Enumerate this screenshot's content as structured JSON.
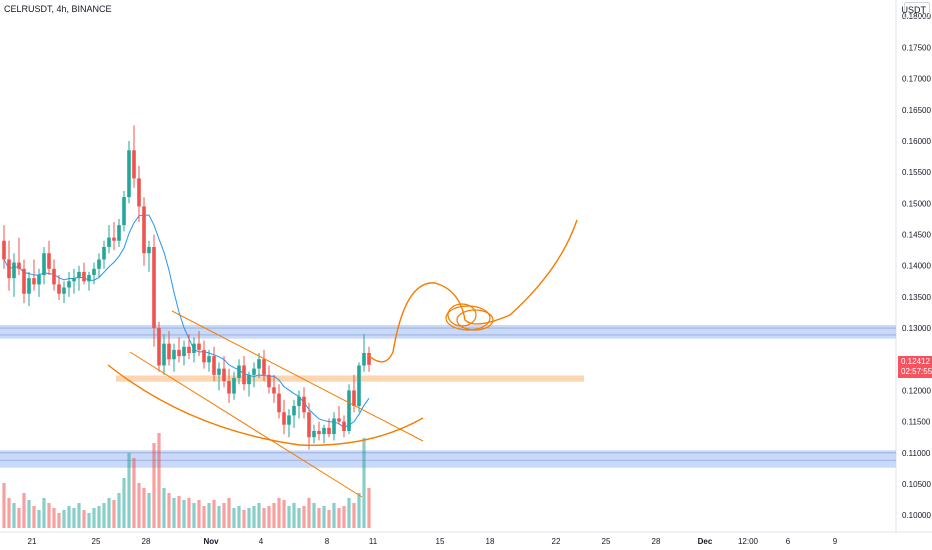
{
  "header": {
    "symbol_title": "CELRUSDT, 4h, BINANCE",
    "currency": "USDT"
  },
  "price_badge": {
    "price": "0.12412",
    "countdown": "02:57:55",
    "color": "#f7525f"
  },
  "colors": {
    "up": "#26a69a",
    "down": "#ef5350",
    "ma": "#2196f3",
    "drawing": "#f57c00",
    "zone_blue": "#b7cdf6",
    "zone_orange": "#fbcfa3",
    "background": "#ffffff"
  },
  "chart_data": {
    "type": "candlestick",
    "ylim": [
      0.0973,
      0.1826
    ],
    "y_ticks": [
      "0.18000",
      "0.17500",
      "0.17000",
      "0.16500",
      "0.16000",
      "0.15500",
      "0.15000",
      "0.14500",
      "0.14000",
      "0.13500",
      "0.13000",
      "0.12500",
      "0.12000",
      "0.11500",
      "0.11000",
      "0.10500",
      "0.10000"
    ],
    "x_ticks": [
      {
        "label": "21",
        "bold": false
      },
      {
        "label": "25",
        "bold": false
      },
      {
        "label": "28",
        "bold": false
      },
      {
        "label": "Nov",
        "bold": true
      },
      {
        "label": "4",
        "bold": false
      },
      {
        "label": "8",
        "bold": false
      },
      {
        "label": "11",
        "bold": false
      },
      {
        "label": "15",
        "bold": false
      },
      {
        "label": "18",
        "bold": false
      },
      {
        "label": "22",
        "bold": false
      },
      {
        "label": "25",
        "bold": false
      },
      {
        "label": "28",
        "bold": false
      },
      {
        "label": "Dec",
        "bold": true
      },
      {
        "label": "12:00",
        "bold": false
      },
      {
        "label": "6",
        "bold": false
      },
      {
        "label": "9",
        "bold": false
      }
    ],
    "candles_ohlc": [
      [
        0.144,
        0.1465,
        0.1395,
        0.141
      ],
      [
        0.141,
        0.144,
        0.136,
        0.138
      ],
      [
        0.138,
        0.142,
        0.135,
        0.1405
      ],
      [
        0.1405,
        0.1445,
        0.1385,
        0.1395
      ],
      [
        0.1395,
        0.141,
        0.134,
        0.1355
      ],
      [
        0.1355,
        0.139,
        0.1335,
        0.138
      ],
      [
        0.138,
        0.141,
        0.136,
        0.137
      ],
      [
        0.137,
        0.1395,
        0.135,
        0.1385
      ],
      [
        0.1385,
        0.143,
        0.137,
        0.142
      ],
      [
        0.142,
        0.144,
        0.1385,
        0.1395
      ],
      [
        0.1395,
        0.141,
        0.136,
        0.137
      ],
      [
        0.137,
        0.1385,
        0.1345,
        0.1355
      ],
      [
        0.1355,
        0.1375,
        0.134,
        0.1365
      ],
      [
        0.1365,
        0.139,
        0.135,
        0.1375
      ],
      [
        0.1375,
        0.1395,
        0.1355,
        0.138
      ],
      [
        0.138,
        0.14,
        0.136,
        0.139
      ],
      [
        0.139,
        0.1405,
        0.137,
        0.1375
      ],
      [
        0.1375,
        0.139,
        0.136,
        0.1385
      ],
      [
        0.1385,
        0.1405,
        0.137,
        0.1395
      ],
      [
        0.1395,
        0.142,
        0.138,
        0.141
      ],
      [
        0.141,
        0.144,
        0.1395,
        0.143
      ],
      [
        0.143,
        0.1465,
        0.142,
        0.1445
      ],
      [
        0.1445,
        0.147,
        0.1425,
        0.144
      ],
      [
        0.144,
        0.1475,
        0.143,
        0.1465
      ],
      [
        0.1465,
        0.152,
        0.1455,
        0.151
      ],
      [
        0.151,
        0.16,
        0.15,
        0.1585
      ],
      [
        0.1585,
        0.1625,
        0.1525,
        0.154
      ],
      [
        0.154,
        0.156,
        0.147,
        0.1495
      ],
      [
        0.1495,
        0.151,
        0.14,
        0.142
      ],
      [
        0.142,
        0.144,
        0.139,
        0.143
      ],
      [
        0.143,
        0.145,
        0.127,
        0.13
      ],
      [
        0.13,
        0.131,
        0.123,
        0.124
      ],
      [
        0.124,
        0.129,
        0.1225,
        0.1275
      ],
      [
        0.1275,
        0.1295,
        0.124,
        0.125
      ],
      [
        0.125,
        0.1275,
        0.123,
        0.1265
      ],
      [
        0.1265,
        0.1285,
        0.1245,
        0.1255
      ],
      [
        0.1255,
        0.128,
        0.124,
        0.127
      ],
      [
        0.127,
        0.129,
        0.125,
        0.126
      ],
      [
        0.126,
        0.1285,
        0.1245,
        0.1275
      ],
      [
        0.1275,
        0.1295,
        0.1255,
        0.1265
      ],
      [
        0.1265,
        0.128,
        0.1235,
        0.1245
      ],
      [
        0.1245,
        0.1265,
        0.123,
        0.1255
      ],
      [
        0.1255,
        0.127,
        0.1215,
        0.1225
      ],
      [
        0.1225,
        0.1245,
        0.12,
        0.1235
      ],
      [
        0.1235,
        0.1255,
        0.1205,
        0.1215
      ],
      [
        0.1215,
        0.1235,
        0.118,
        0.1195
      ],
      [
        0.1195,
        0.123,
        0.1185,
        0.122
      ],
      [
        0.122,
        0.125,
        0.121,
        0.124
      ],
      [
        0.124,
        0.1255,
        0.12,
        0.121
      ],
      [
        0.121,
        0.123,
        0.119,
        0.1225
      ],
      [
        0.1225,
        0.1245,
        0.1205,
        0.1235
      ],
      [
        0.1235,
        0.126,
        0.122,
        0.125
      ],
      [
        0.125,
        0.1265,
        0.1215,
        0.1225
      ],
      [
        0.1225,
        0.124,
        0.1195,
        0.1205
      ],
      [
        0.1205,
        0.1225,
        0.118,
        0.1195
      ],
      [
        0.1195,
        0.121,
        0.1155,
        0.1165
      ],
      [
        0.1165,
        0.1185,
        0.113,
        0.1145
      ],
      [
        0.1145,
        0.117,
        0.1125,
        0.116
      ],
      [
        0.116,
        0.1185,
        0.114,
        0.1175
      ],
      [
        0.1175,
        0.12,
        0.1155,
        0.119
      ],
      [
        0.119,
        0.1205,
        0.1155,
        0.1165
      ],
      [
        0.1165,
        0.118,
        0.1105,
        0.1125
      ],
      [
        0.1125,
        0.1145,
        0.1115,
        0.1135
      ],
      [
        0.1135,
        0.115,
        0.112,
        0.113
      ],
      [
        0.113,
        0.1145,
        0.1115,
        0.114
      ],
      [
        0.114,
        0.1155,
        0.1125,
        0.113
      ],
      [
        0.113,
        0.1165,
        0.112,
        0.1155
      ],
      [
        0.1155,
        0.1175,
        0.1145,
        0.115
      ],
      [
        0.115,
        0.116,
        0.1125,
        0.1135
      ],
      [
        0.1135,
        0.121,
        0.113,
        0.12
      ],
      [
        0.12,
        0.1225,
        0.1165,
        0.1175
      ],
      [
        0.1175,
        0.1245,
        0.1165,
        0.124
      ],
      [
        0.124,
        0.129,
        0.123,
        0.126
      ],
      [
        0.126,
        0.127,
        0.123,
        0.1241
      ]
    ],
    "volumes": [
      0.45,
      0.3,
      0.25,
      0.2,
      0.35,
      0.28,
      0.22,
      0.18,
      0.3,
      0.25,
      0.2,
      0.15,
      0.18,
      0.22,
      0.2,
      0.25,
      0.18,
      0.15,
      0.2,
      0.22,
      0.25,
      0.3,
      0.28,
      0.35,
      0.5,
      0.75,
      0.7,
      0.45,
      0.4,
      0.35,
      0.85,
      0.95,
      0.4,
      0.35,
      0.3,
      0.32,
      0.28,
      0.3,
      0.25,
      0.28,
      0.22,
      0.25,
      0.28,
      0.22,
      0.25,
      0.3,
      0.2,
      0.22,
      0.18,
      0.2,
      0.22,
      0.25,
      0.2,
      0.22,
      0.25,
      0.3,
      0.28,
      0.22,
      0.25,
      0.2,
      0.22,
      0.3,
      0.25,
      0.2,
      0.22,
      0.18,
      0.25,
      0.2,
      0.22,
      0.3,
      0.25,
      0.35,
      0.9,
      0.4
    ],
    "zones": [
      {
        "from": 0.1283,
        "to": 0.1305,
        "color": "#b7cdf6"
      },
      {
        "from": 0.1076,
        "to": 0.1104,
        "color": "#b7cdf6"
      }
    ],
    "zone_lines": [
      0.13,
      0.1289,
      0.11,
      0.1088
    ],
    "orange_zone": {
      "from": 0.1214,
      "to": 0.1224,
      "color": "#fbcfa3"
    }
  }
}
